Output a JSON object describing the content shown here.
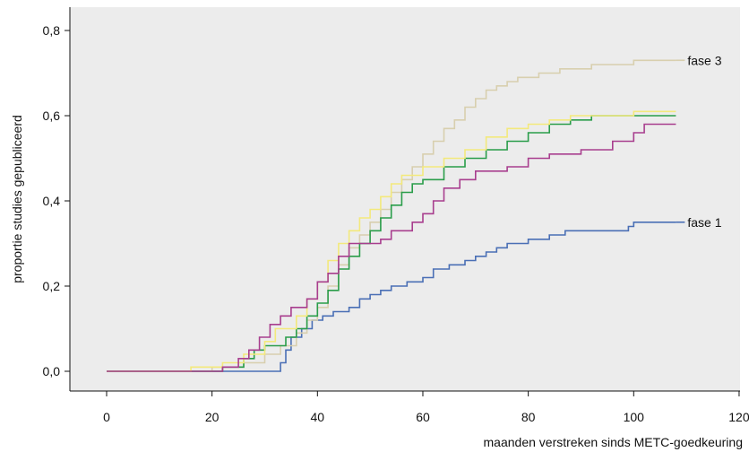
{
  "chart_data": {
    "type": "line",
    "title": "",
    "xlabel": "maanden verstreken sinds METC-goedkeuring",
    "ylabel": "proportie studies gepubliceerd",
    "xlim": [
      0,
      120
    ],
    "ylim": [
      0,
      0.8
    ],
    "x_ticks": [
      0,
      20,
      40,
      60,
      80,
      100,
      120
    ],
    "x_tick_labels": [
      "0",
      "20",
      "40",
      "60",
      "80",
      "100",
      "120"
    ],
    "y_ticks": [
      0,
      0.2,
      0.4,
      0.6,
      0.8
    ],
    "y_tick_labels": [
      "0,0",
      "0,2",
      "0,4",
      "0,6",
      "0,8"
    ],
    "grid": false,
    "plot_background": "#ececec",
    "series": [
      {
        "name": "fase 1",
        "color": "#4a6fb5",
        "points": [
          [
            0,
            0
          ],
          [
            32,
            0
          ],
          [
            33,
            0.02
          ],
          [
            34,
            0.05
          ],
          [
            35,
            0.08
          ],
          [
            37,
            0.1
          ],
          [
            39,
            0.12
          ],
          [
            41,
            0.13
          ],
          [
            43,
            0.14
          ],
          [
            46,
            0.15
          ],
          [
            48,
            0.17
          ],
          [
            50,
            0.18
          ],
          [
            52,
            0.19
          ],
          [
            54,
            0.2
          ],
          [
            57,
            0.21
          ],
          [
            60,
            0.22
          ],
          [
            62,
            0.24
          ],
          [
            65,
            0.25
          ],
          [
            68,
            0.26
          ],
          [
            70,
            0.27
          ],
          [
            72,
            0.28
          ],
          [
            74,
            0.29
          ],
          [
            76,
            0.3
          ],
          [
            80,
            0.31
          ],
          [
            84,
            0.32
          ],
          [
            87,
            0.33
          ],
          [
            99,
            0.34
          ],
          [
            100,
            0.35
          ],
          [
            108,
            0.35
          ]
        ]
      },
      {
        "name": "fase 3",
        "color": "#d8cfae",
        "points": [
          [
            0,
            0
          ],
          [
            15,
            0
          ],
          [
            20,
            0.01
          ],
          [
            26,
            0.02
          ],
          [
            30,
            0.04
          ],
          [
            33,
            0.06
          ],
          [
            36,
            0.09
          ],
          [
            38,
            0.12
          ],
          [
            40,
            0.15
          ],
          [
            42,
            0.2
          ],
          [
            44,
            0.25
          ],
          [
            46,
            0.29
          ],
          [
            48,
            0.32
          ],
          [
            50,
            0.35
          ],
          [
            52,
            0.38
          ],
          [
            54,
            0.42
          ],
          [
            56,
            0.45
          ],
          [
            58,
            0.48
          ],
          [
            60,
            0.51
          ],
          [
            62,
            0.54
          ],
          [
            64,
            0.57
          ],
          [
            66,
            0.59
          ],
          [
            68,
            0.62
          ],
          [
            70,
            0.64
          ],
          [
            72,
            0.66
          ],
          [
            74,
            0.67
          ],
          [
            76,
            0.68
          ],
          [
            78,
            0.69
          ],
          [
            82,
            0.7
          ],
          [
            86,
            0.71
          ],
          [
            92,
            0.72
          ],
          [
            100,
            0.73
          ],
          [
            108,
            0.73
          ]
        ]
      },
      {
        "name": "",
        "color": "#2a9d4a",
        "points": [
          [
            0,
            0
          ],
          [
            18,
            0
          ],
          [
            22,
            0.01
          ],
          [
            26,
            0.03
          ],
          [
            28,
            0.05
          ],
          [
            30,
            0.06
          ],
          [
            34,
            0.08
          ],
          [
            36,
            0.1
          ],
          [
            38,
            0.13
          ],
          [
            40,
            0.16
          ],
          [
            42,
            0.19
          ],
          [
            44,
            0.24
          ],
          [
            46,
            0.27
          ],
          [
            48,
            0.3
          ],
          [
            50,
            0.33
          ],
          [
            52,
            0.36
          ],
          [
            54,
            0.39
          ],
          [
            56,
            0.42
          ],
          [
            58,
            0.44
          ],
          [
            60,
            0.45
          ],
          [
            64,
            0.48
          ],
          [
            68,
            0.5
          ],
          [
            72,
            0.52
          ],
          [
            76,
            0.54
          ],
          [
            80,
            0.56
          ],
          [
            84,
            0.58
          ],
          [
            88,
            0.59
          ],
          [
            92,
            0.6
          ],
          [
            108,
            0.6
          ]
        ]
      },
      {
        "name": "",
        "color": "#f3e97c",
        "points": [
          [
            0,
            0
          ],
          [
            13,
            0
          ],
          [
            16,
            0.01
          ],
          [
            22,
            0.02
          ],
          [
            26,
            0.04
          ],
          [
            30,
            0.07
          ],
          [
            32,
            0.1
          ],
          [
            36,
            0.13
          ],
          [
            38,
            0.17
          ],
          [
            40,
            0.21
          ],
          [
            42,
            0.26
          ],
          [
            44,
            0.3
          ],
          [
            46,
            0.33
          ],
          [
            48,
            0.36
          ],
          [
            50,
            0.38
          ],
          [
            52,
            0.41
          ],
          [
            54,
            0.44
          ],
          [
            56,
            0.46
          ],
          [
            60,
            0.48
          ],
          [
            64,
            0.5
          ],
          [
            68,
            0.52
          ],
          [
            72,
            0.55
          ],
          [
            76,
            0.57
          ],
          [
            80,
            0.58
          ],
          [
            84,
            0.59
          ],
          [
            88,
            0.6
          ],
          [
            100,
            0.61
          ],
          [
            108,
            0.61
          ]
        ]
      },
      {
        "name": "",
        "color": "#a83e8e",
        "points": [
          [
            0,
            0
          ],
          [
            20,
            0
          ],
          [
            22,
            0.01
          ],
          [
            25,
            0.03
          ],
          [
            27,
            0.05
          ],
          [
            29,
            0.08
          ],
          [
            31,
            0.11
          ],
          [
            33,
            0.13
          ],
          [
            35,
            0.15
          ],
          [
            38,
            0.17
          ],
          [
            40,
            0.21
          ],
          [
            42,
            0.23
          ],
          [
            44,
            0.27
          ],
          [
            46,
            0.3
          ],
          [
            52,
            0.31
          ],
          [
            54,
            0.33
          ],
          [
            58,
            0.35
          ],
          [
            60,
            0.37
          ],
          [
            62,
            0.4
          ],
          [
            64,
            0.43
          ],
          [
            67,
            0.45
          ],
          [
            70,
            0.47
          ],
          [
            76,
            0.48
          ],
          [
            80,
            0.5
          ],
          [
            84,
            0.51
          ],
          [
            90,
            0.52
          ],
          [
            96,
            0.54
          ],
          [
            100,
            0.56
          ],
          [
            102,
            0.58
          ],
          [
            108,
            0.58
          ]
        ]
      }
    ],
    "annotations": [
      "fase 3",
      "fase 1"
    ]
  }
}
